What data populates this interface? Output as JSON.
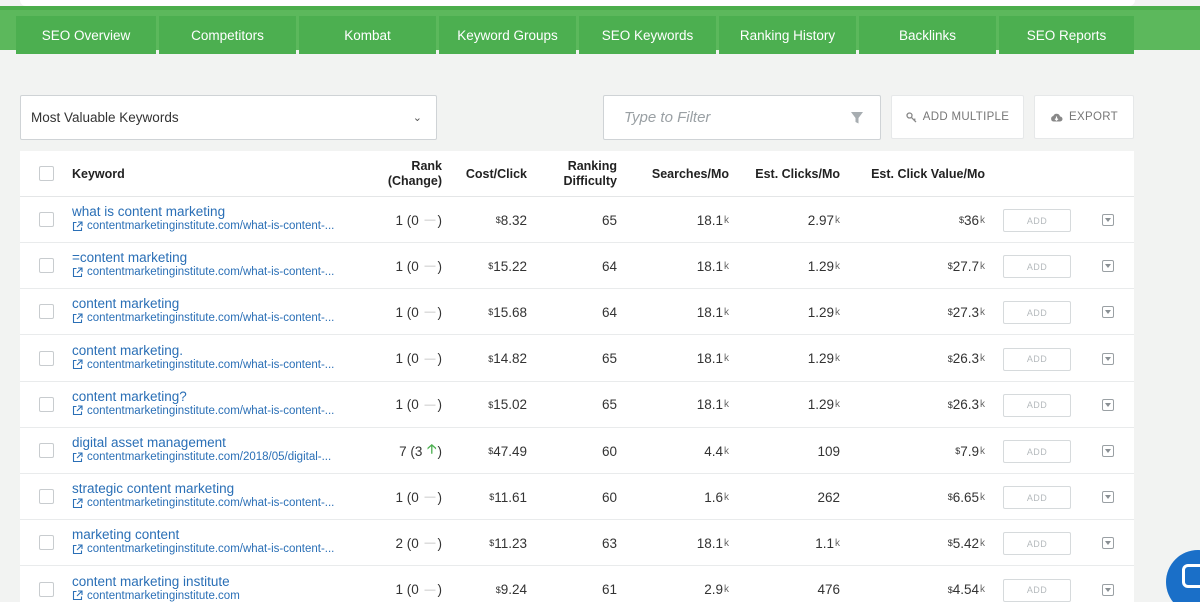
{
  "nav": {
    "tabs": [
      "SEO Overview",
      "Competitors",
      "Kombat",
      "Keyword Groups",
      "SEO Keywords",
      "Ranking History",
      "Backlinks",
      "SEO Reports"
    ]
  },
  "toolbar": {
    "select_value": "Most Valuable Keywords",
    "filter_placeholder": "Type to Filter",
    "add_multiple_label": "ADD MULTIPLE",
    "export_label": "EXPORT"
  },
  "table": {
    "headers": {
      "keyword": "Keyword",
      "rank_line1": "Rank",
      "rank_line2": "(Change)",
      "cost": "Cost/Click",
      "difficulty_line1": "Ranking",
      "difficulty_line2": "Difficulty",
      "searches": "Searches/Mo",
      "clicks": "Est. Clicks/Mo",
      "value": "Est. Click Value/Mo"
    },
    "add_label": "ADD",
    "currency": "$",
    "k_suffix": "k",
    "rows": [
      {
        "keyword": "what is content marketing",
        "url": "contentmarketinginstitute.com/what-is-content-...",
        "rank": "1",
        "change": "0",
        "change_dir": "none",
        "cost": "8.32",
        "difficulty": "65",
        "searches": "18.1",
        "searches_k": true,
        "clicks": "2.97",
        "clicks_k": true,
        "value": "36",
        "value_k": true
      },
      {
        "keyword": "=content marketing",
        "url": "contentmarketinginstitute.com/what-is-content-...",
        "rank": "1",
        "change": "0",
        "change_dir": "none",
        "cost": "15.22",
        "difficulty": "64",
        "searches": "18.1",
        "searches_k": true,
        "clicks": "1.29",
        "clicks_k": true,
        "value": "27.7",
        "value_k": true
      },
      {
        "keyword": "content marketing",
        "url": "contentmarketinginstitute.com/what-is-content-...",
        "rank": "1",
        "change": "0",
        "change_dir": "none",
        "cost": "15.68",
        "difficulty": "64",
        "searches": "18.1",
        "searches_k": true,
        "clicks": "1.29",
        "clicks_k": true,
        "value": "27.3",
        "value_k": true
      },
      {
        "keyword": "content marketing.",
        "url": "contentmarketinginstitute.com/what-is-content-...",
        "rank": "1",
        "change": "0",
        "change_dir": "none",
        "cost": "14.82",
        "difficulty": "65",
        "searches": "18.1",
        "searches_k": true,
        "clicks": "1.29",
        "clicks_k": true,
        "value": "26.3",
        "value_k": true
      },
      {
        "keyword": "content marketing?",
        "url": "contentmarketinginstitute.com/what-is-content-...",
        "rank": "1",
        "change": "0",
        "change_dir": "none",
        "cost": "15.02",
        "difficulty": "65",
        "searches": "18.1",
        "searches_k": true,
        "clicks": "1.29",
        "clicks_k": true,
        "value": "26.3",
        "value_k": true
      },
      {
        "keyword": "digital asset management",
        "url": "contentmarketinginstitute.com/2018/05/digital-...",
        "rank": "7",
        "change": "3",
        "change_dir": "up",
        "cost": "47.49",
        "difficulty": "60",
        "searches": "4.4",
        "searches_k": true,
        "clicks": "109",
        "clicks_k": false,
        "value": "7.9",
        "value_k": true
      },
      {
        "keyword": "strategic content marketing",
        "url": "contentmarketinginstitute.com/what-is-content-...",
        "rank": "1",
        "change": "0",
        "change_dir": "none",
        "cost": "11.61",
        "difficulty": "60",
        "searches": "1.6",
        "searches_k": true,
        "clicks": "262",
        "clicks_k": false,
        "value": "6.65",
        "value_k": true
      },
      {
        "keyword": "marketing content",
        "url": "contentmarketinginstitute.com/what-is-content-...",
        "rank": "2",
        "change": "0",
        "change_dir": "none",
        "cost": "11.23",
        "difficulty": "63",
        "searches": "18.1",
        "searches_k": true,
        "clicks": "1.1",
        "clicks_k": true,
        "value": "5.42",
        "value_k": true
      },
      {
        "keyword": "content marketing institute",
        "url": "contentmarketinginstitute.com",
        "rank": "1",
        "change": "0",
        "change_dir": "none",
        "cost": "9.24",
        "difficulty": "61",
        "searches": "2.9",
        "searches_k": true,
        "clicks": "476",
        "clicks_k": false,
        "value": "4.54",
        "value_k": true
      }
    ]
  },
  "colors": {
    "nav_bg": "#5cb85c",
    "tab_bg": "#4caf50",
    "link": "#2a6fb6",
    "up_arrow": "#4caf50",
    "chat": "#1a6fc8"
  }
}
